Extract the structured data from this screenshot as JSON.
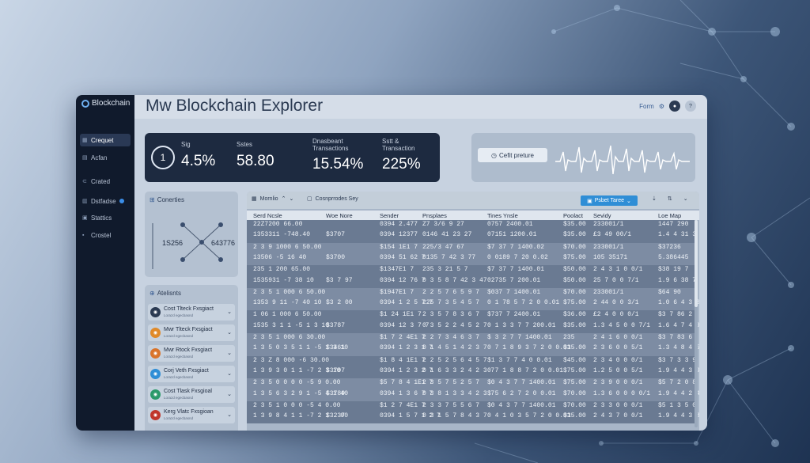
{
  "app": {
    "brand": "Blockchain",
    "title": "Mw Blockchain Explorer",
    "top_link": "Form",
    "top_icons": [
      "settings-icon",
      "user-icon",
      "help-icon"
    ]
  },
  "sidebar": {
    "items": [
      {
        "label": "Crequet",
        "icon": "grid-icon",
        "active": true
      },
      {
        "label": "Acfan",
        "icon": "document-icon",
        "active": false
      },
      {
        "label": "Crated",
        "icon": "link-icon",
        "active": false
      },
      {
        "label": "Dstfadse",
        "icon": "dashboard-icon",
        "active": false,
        "badge": true
      },
      {
        "label": "Stattics",
        "icon": "chart-icon",
        "active": false
      },
      {
        "label": "Crostel",
        "icon": "folder-icon",
        "active": false
      }
    ]
  },
  "stats": {
    "gauge": "1",
    "items": [
      {
        "label": "Sig",
        "label2": "",
        "value": "4.5%"
      },
      {
        "label": "Sstes",
        "label2": "",
        "value": "58.80"
      },
      {
        "label": "Dnasbeant",
        "label2": "Transactions",
        "value": "15.54%"
      },
      {
        "label": "Sstt &",
        "label2": "Transaction",
        "value": "225%"
      }
    ]
  },
  "chart_card": {
    "button_label": "Cefit preture"
  },
  "connections": {
    "title": "Conerties",
    "left_value": "1S256",
    "right_value": "643776"
  },
  "alerts": {
    "title": "Atelisnts",
    "items": [
      {
        "title": "Cost Tlteck Fxsgiact",
        "sub": "Lorazd egecbasnd",
        "color": "#2b3a52"
      },
      {
        "title": "Mwr Tlteck Fxsgiact",
        "sub": "Lorazd egecbasnd",
        "color": "#e08a2a"
      },
      {
        "title": "Mwr Rtock Fxsgiact",
        "sub": "Lorazd egecbasnd",
        "color": "#d9742b"
      },
      {
        "title": "Corj Veth Fxsgiact",
        "sub": "Lorazd egecbasnd",
        "color": "#2f8ed6"
      },
      {
        "title": "Cost Tlask Fxsgioal",
        "sub": "Lorazd egecbasnd",
        "color": "#2b9a6a"
      },
      {
        "title": "Kerg Vlatc Fxsgioan",
        "sub": "Lorazd egecbasnd",
        "color": "#c0362c"
      }
    ]
  },
  "table": {
    "toolbar": {
      "search1": "Mornlio",
      "search2": "Cosnprrodes Sey",
      "filter_label": "Psbet Taree"
    },
    "headers": [
      "Serd Ncsle",
      "Woe Nore",
      "Sender",
      "Pnsplaes",
      "Tines Ynsle",
      "Poolact",
      "Sevidy",
      "Loe Map"
    ],
    "rows": [
      [
        "22Z7200 66.00",
        "",
        "0394 2.477",
        "Z7 3/6 9 27",
        "0757 2400.01",
        "$35.00",
        "233001/1",
        "1447 290"
      ],
      [
        "1353311 -748.40",
        "$3707",
        "0394 12377",
        "0146 41 23 27",
        "07151 1200.01",
        "$35.00",
        "£3 49 00/1",
        "1.4 4 31 3"
      ],
      [
        "2 3 9 1000 6 50.00",
        "",
        "$154 1E1 7",
        "225/3 47 67",
        "$7 37 7 1400.02",
        "$70.00",
        "233001/1",
        "$37236"
      ],
      [
        "13506 -5 16 40",
        "$3700",
        "0394 51 62 7",
        "0135 7 42 3 77",
        "0 0189 7 20 0.02",
        "$75.00",
        "105 35171",
        "5.386445"
      ],
      [
        "235 1 200 65.00",
        "",
        "$1347E1 7",
        "235 3 21 5 7",
        "$7 37 7 1400.01",
        "$50.00",
        "2 4 3 1 0 0/1",
        "$38 19 7"
      ],
      [
        "1535931 -7 38 10",
        "$3 7 97",
        "0394 12 76 7",
        "0 3 5 8 7 42 3 47",
        "02735 7 200.01",
        "$50.00",
        "25 7 0 0 7/1",
        "1.9 6 38 7 5"
      ],
      [
        "2 3 5 1 000 6 50.00",
        "",
        "$1947E1 7",
        "2 2 5 7 6 5 9 7",
        "$037 7 1400.01",
        "$70.00",
        "233001/1",
        "$64 90"
      ],
      [
        "1353 9 11 -7 40 10",
        "$3 2 00",
        "0394 1 2 5 7 7",
        "225 7 3 5 4 5 7",
        "0 1 78 5 7 2 0 0.01",
        "$75.00",
        "2 44 0 0 3/1",
        "1.0 6 4 3 8 3"
      ],
      [
        "1 06 1 000 6 50.00",
        "",
        "$1 24 1E1 7",
        "2 3 5 7 8 3 6 7",
        "$737 7 2400.01",
        "$36.00",
        "£2 4 0 0 0/1",
        "$3 7 86 2"
      ],
      [
        "1535 3 1 1 -5 1 3 10",
        "$3787",
        "0394 12 3 7 7",
        "0 3 5 2 2 4 5 2 7",
        "0 1 3 3 7 7 200.01",
        "$35.00",
        "1.3 4 5 0 0 7/1",
        "1.6 4 7 4 9 7"
      ],
      [
        "2 3 5 1 000 6 30.00",
        "",
        "$1 7 2 4E1 7",
        "2 2 7 3 4 6 3 7",
        "$ 3 2 7 7 1400.01",
        "235",
        "2 4 1 6 0 0/1",
        "$3 7 83 6"
      ],
      [
        "1 3 5 0 3 5 1 1 -5 1 3 10",
        "$3461",
        "0394 1 2 3 1 7",
        "0 1 4 5 1 4 2 3 7",
        "0 7 1 8 9 3 7 2 0 0.01",
        "$35.00",
        "2 3 6 0 0 5/1",
        "1.3 4 8 4 5 5"
      ],
      [
        "2 3 Z 8 000 -6 30.00",
        "",
        "$1 8 4 1E1 7",
        "2 2 5 2 5 6 4 5 7",
        "$1 3 7 7 4 0 0.01",
        "$45.00",
        "2 3 4 0 0 0/1",
        "$3 7 3 3 9"
      ],
      [
        "1 3 9 3 0 1 1 -7 2 3 10",
        "$3707",
        "0394 1 2 3 2 7",
        "0 1 6 3 3 2 4 2 3 7",
        "0 7 1 8 8 7 2 0 0.01",
        "$75.00",
        "1.2 5 0 0 5/1",
        "1.9 4 4 3 9 5"
      ],
      [
        "2 3 5 0 0 0 0 -5 9 0.00",
        "",
        "$5 7 8 4 1E1 7",
        "2 3 5 7 5 2 5 7",
        "$0 4 3 7 7 1400.01",
        "$75.00",
        "2 3 9 0 0 0/1",
        "$5 7 2 0 8"
      ],
      [
        "1 3 5 6 3 2 9 1 -5 4 1 40",
        "$3789",
        "0394 1 3 6 7 7",
        "0 3 8 1 3 3 4 2 3 7",
        "$ 5 6 2 7 2 0 0.01",
        "$70.00",
        "1.3 6 0 0 0 0/1",
        "1.9 4 4 2 4 2"
      ],
      [
        "2 3 5 1 0 0 0 -5 4 0.00",
        "",
        "$1 2 7 4E1 7",
        "2 3 3 7 5 5 6 7",
        "$0 4 3 7 7 1400.01",
        "$70.00",
        "2 3 3 0 0 0/1",
        "$5 1 3 5 0"
      ],
      [
        "1 3 9 8 4 1 1 -7 2 1 . 00",
        "$3237",
        "0394 1 5 7 1 2 7",
        "0 3 1 5 7 8 4 3 7",
        "0 4 1 0 3 5 7 2 0 0.01",
        "$35.00",
        "2 4 3 7 0 0/1",
        "1.9 4 4 3 8 1"
      ]
    ]
  },
  "colors": {
    "sidebar": "#101a2c",
    "stats_panel": "#1d2a40",
    "accent": "#2f8ed6",
    "table_row_dark": "#6a7a92",
    "table_row_light": "#7d8ca3"
  }
}
